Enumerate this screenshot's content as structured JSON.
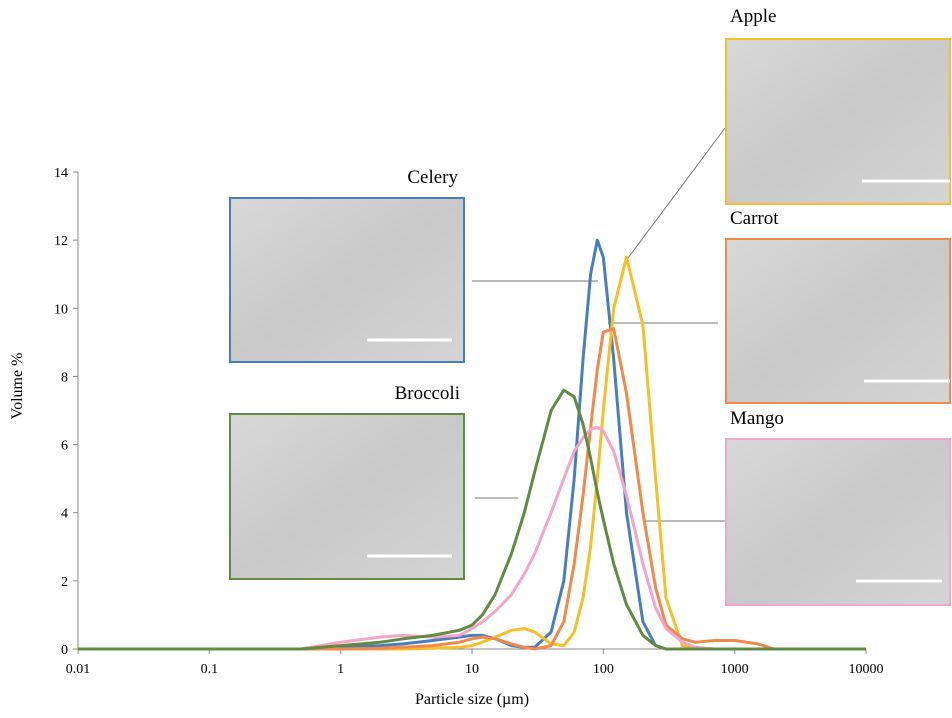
{
  "chart_data": {
    "type": "line",
    "x_label": "Particle size (µm)",
    "y_label": "Volume %",
    "x": [
      0.01,
      0.1,
      0.5,
      1,
      2,
      3,
      5,
      8,
      10,
      12,
      15,
      20,
      25,
      30,
      40,
      50,
      60,
      70,
      80,
      90,
      100,
      120,
      150,
      200,
      250,
      300,
      400,
      500,
      700,
      1000,
      1500,
      2000,
      10000
    ],
    "series": [
      {
        "name": "Celery",
        "color": "#4a7ebb",
        "values": [
          0,
          0,
          0,
          0.05,
          0.1,
          0.15,
          0.25,
          0.35,
          0.4,
          0.4,
          0.3,
          0.1,
          0.05,
          0.05,
          0.5,
          2,
          5,
          8.5,
          11,
          12,
          11.5,
          8.5,
          4,
          0.8,
          0.1,
          0,
          0,
          0,
          0,
          0,
          0,
          0,
          0
        ]
      },
      {
        "name": "Apple",
        "color": "#f5bf2a",
        "values": [
          0,
          0,
          0,
          0,
          0,
          0,
          0.02,
          0.05,
          0.1,
          0.2,
          0.35,
          0.55,
          0.6,
          0.5,
          0.15,
          0.1,
          0.5,
          1.5,
          3,
          5,
          7,
          10,
          11.5,
          9.5,
          5,
          1.5,
          0.1,
          0,
          0,
          0,
          0,
          0,
          0
        ]
      },
      {
        "name": "Carrot",
        "color": "#ee8a4c",
        "values": [
          0,
          0,
          0,
          0,
          0.02,
          0.05,
          0.1,
          0.2,
          0.3,
          0.35,
          0.3,
          0.15,
          0.05,
          0,
          0.1,
          0.8,
          2.5,
          4.5,
          6.5,
          8.2,
          9.3,
          9.4,
          7.5,
          4,
          1.8,
          0.7,
          0.3,
          0.2,
          0.25,
          0.25,
          0.15,
          0,
          0
        ]
      },
      {
        "name": "Mango",
        "color": "#f4a5c9",
        "values": [
          0,
          0,
          0,
          0.2,
          0.35,
          0.4,
          0.35,
          0.4,
          0.6,
          0.8,
          1.1,
          1.6,
          2.2,
          2.8,
          4,
          5,
          5.8,
          6.2,
          6.45,
          6.5,
          6.4,
          5.8,
          4.5,
          2.5,
          1.2,
          0.6,
          0.2,
          0.05,
          0,
          0,
          0,
          0,
          0
        ]
      },
      {
        "name": "Broccoli",
        "color": "#5f8b43",
        "values": [
          0,
          0,
          0,
          0.1,
          0.2,
          0.3,
          0.4,
          0.55,
          0.7,
          1,
          1.6,
          2.8,
          4,
          5.2,
          7,
          7.6,
          7.4,
          6.6,
          5.6,
          4.6,
          3.8,
          2.5,
          1.3,
          0.4,
          0.1,
          0,
          0,
          0,
          0,
          0,
          0,
          0,
          0
        ]
      }
    ],
    "log_x": true,
    "xlim": [
      0.01,
      10000
    ],
    "xticks": [
      0.01,
      0.1,
      1,
      10,
      100,
      1000,
      10000
    ],
    "ylim": [
      0,
      14
    ],
    "yticks": [
      0,
      2,
      4,
      6,
      8,
      10,
      12,
      14
    ]
  }
}
